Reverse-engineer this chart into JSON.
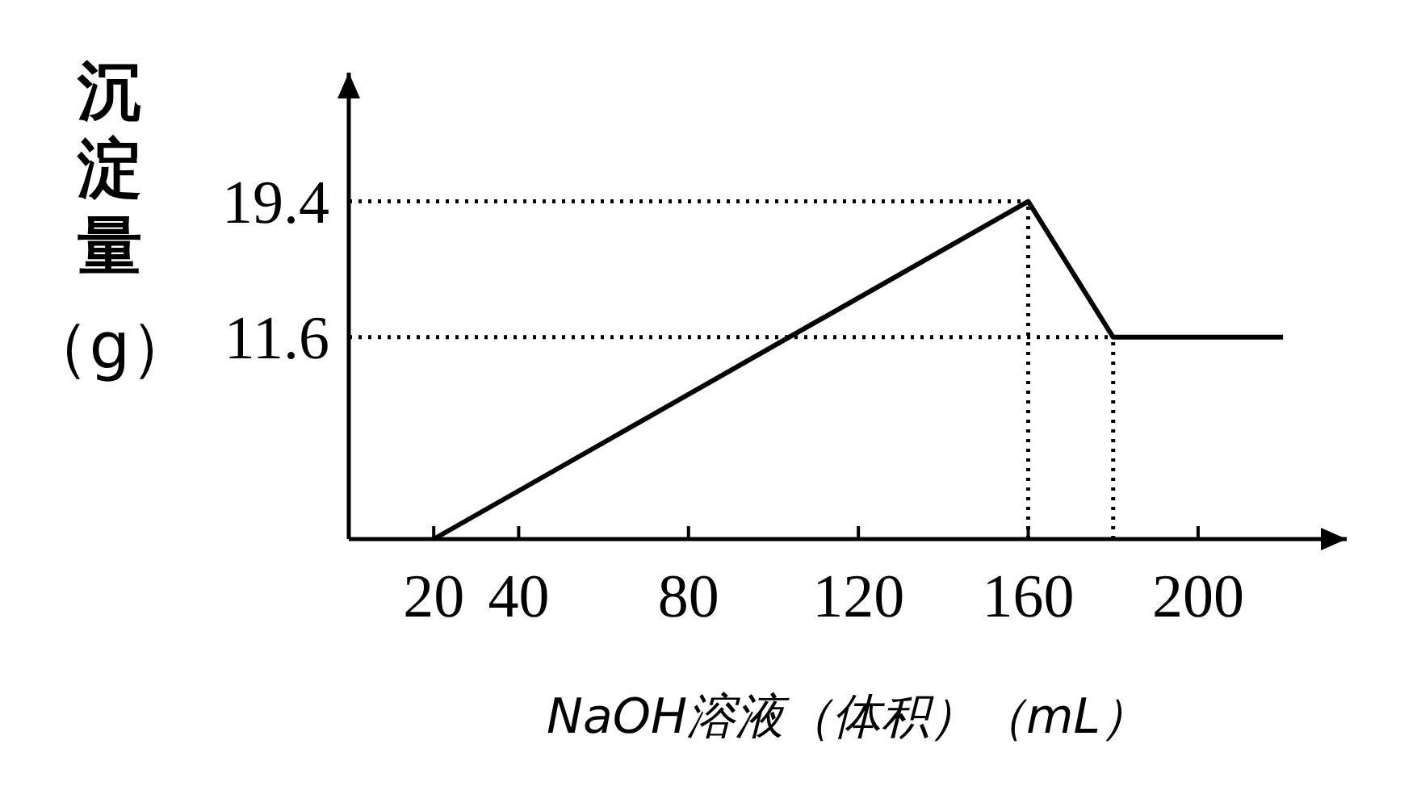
{
  "chart_data": {
    "type": "line",
    "xlabel": "NaOH溶液（体积）（mL）",
    "ylabel": "沉淀量（g）",
    "x": [
      20,
      160,
      180,
      220
    ],
    "values": [
      0,
      19.4,
      11.6,
      11.6
    ],
    "color": "#000000",
    "xlim": [
      0,
      235
    ],
    "ylim": [
      0,
      26.8
    ],
    "xticks": [
      20,
      40,
      80,
      120,
      160,
      200
    ],
    "yticks": [
      19.4,
      11.6
    ],
    "ref_lines": [
      {
        "axis": "y",
        "value": 19.4,
        "line_style": "dotted"
      },
      {
        "axis": "y",
        "value": 11.6,
        "line_style": "dotted"
      },
      {
        "axis": "x",
        "value": 160,
        "line_style": "dotted"
      },
      {
        "axis": "x",
        "value": 180,
        "line_style": "dotted"
      }
    ],
    "marker": "none",
    "line_style": "solid",
    "grid": false
  }
}
